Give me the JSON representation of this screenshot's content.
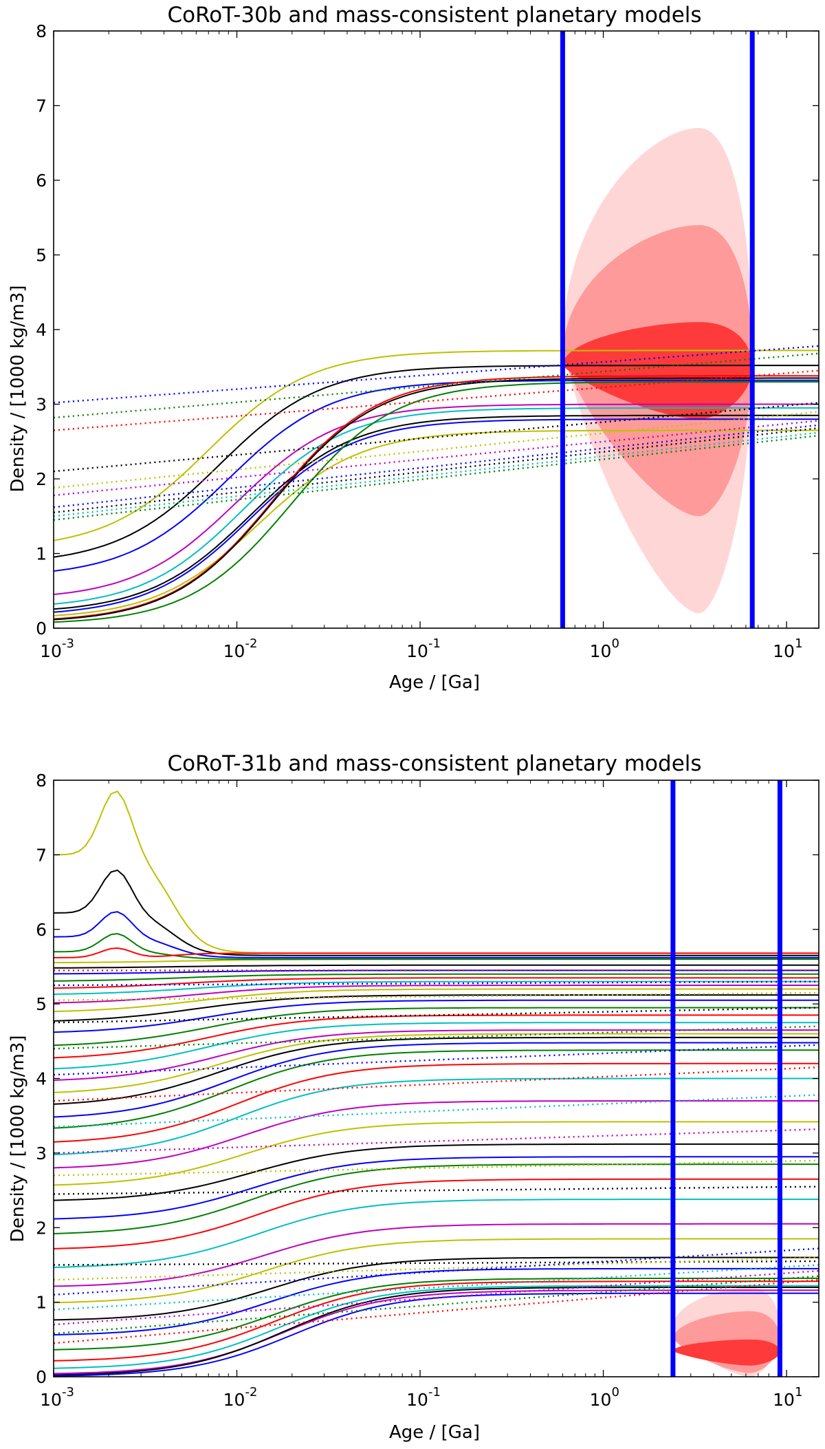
{
  "chart_data": [
    {
      "type": "line",
      "title": "CoRoT-30b and mass-consistent planetary models",
      "xlabel": "Age / [Ga]",
      "ylabel": "Density / [1000 kg/m3]",
      "xscale": "log",
      "xlim": [
        0.001,
        15
      ],
      "ylim": [
        0,
        8
      ],
      "yticks": [
        0,
        1,
        2,
        3,
        4,
        5,
        6,
        7,
        8
      ],
      "xticks": [
        {
          "value": 0.001,
          "base": "10",
          "exp": "-3"
        },
        {
          "value": 0.01,
          "base": "10",
          "exp": "-2"
        },
        {
          "value": 0.1,
          "base": "10",
          "exp": "-1"
        },
        {
          "value": 1,
          "base": "10",
          "exp": "0"
        },
        {
          "value": 10,
          "base": "10",
          "exp": "1"
        }
      ],
      "vlines": [
        {
          "x": 0.6,
          "color": "#0000ff"
        },
        {
          "x": 6.5,
          "color": "#0000ff"
        }
      ],
      "density_regions": [
        {
          "level": "outer",
          "color": "#ffd6d6",
          "xrange": [
            0.6,
            6.5
          ],
          "yrange": [
            0.2,
            6.7
          ]
        },
        {
          "level": "middle",
          "color": "#ff9a9a",
          "xrange": [
            0.6,
            6.5
          ],
          "yrange": [
            1.5,
            5.4
          ]
        },
        {
          "level": "inner",
          "color": "#ff3a3a",
          "xrange": [
            0.6,
            6.5
          ],
          "yrange": [
            2.8,
            4.1
          ]
        }
      ],
      "series": [
        {
          "style": "solid",
          "color": "#bfbf00",
          "start": 1.05,
          "end": 3.72,
          "mid": 0.007
        },
        {
          "style": "solid",
          "color": "#000000",
          "start": 0.85,
          "end": 3.52,
          "mid": 0.008
        },
        {
          "style": "solid",
          "color": "#0000ff",
          "start": 0.68,
          "end": 3.32,
          "mid": 0.009
        },
        {
          "style": "solid",
          "color": "#bf00bf",
          "start": 0.38,
          "end": 3.0,
          "mid": 0.01
        },
        {
          "style": "solid",
          "color": "#00bfbf",
          "start": 0.26,
          "end": 2.95,
          "mid": 0.011
        },
        {
          "style": "solid",
          "color": "#000000",
          "start": 0.2,
          "end": 2.85,
          "mid": 0.012
        },
        {
          "style": "solid",
          "color": "#0000ff",
          "start": 0.16,
          "end": 2.8,
          "mid": 0.012
        },
        {
          "style": "solid",
          "color": "#bfbf00",
          "start": 0.12,
          "end": 2.65,
          "mid": 0.013
        },
        {
          "style": "solid",
          "color": "#ff0000",
          "start": 0.08,
          "end": 3.38,
          "mid": 0.016
        },
        {
          "style": "solid",
          "color": "#000000",
          "start": 0.07,
          "end": 3.35,
          "mid": 0.016
        },
        {
          "style": "solid",
          "color": "#008000",
          "start": 0.05,
          "end": 3.3,
          "mid": 0.02
        },
        {
          "style": "dotted",
          "color": "#0000ff",
          "start": 3.02,
          "end": 3.78,
          "mid": 0.02
        },
        {
          "style": "dotted",
          "color": "#008000",
          "start": 2.82,
          "end": 3.68,
          "mid": 0.02
        },
        {
          "style": "dotted",
          "color": "#ff0000",
          "start": 2.65,
          "end": 3.45,
          "mid": 0.02
        },
        {
          "style": "dotted",
          "color": "#000000",
          "start": 2.1,
          "end": 3.02,
          "mid": 0.02
        },
        {
          "style": "dotted",
          "color": "#bfbf00",
          "start": 1.88,
          "end": 2.9,
          "mid": 0.02
        },
        {
          "style": "dotted",
          "color": "#bf00bf",
          "start": 1.78,
          "end": 2.78,
          "mid": 0.02
        },
        {
          "style": "dotted",
          "color": "#0000ff",
          "start": 1.62,
          "end": 2.72,
          "mid": 0.02
        },
        {
          "style": "dotted",
          "color": "#000000",
          "start": 1.55,
          "end": 2.68,
          "mid": 0.02
        },
        {
          "style": "dotted",
          "color": "#00bfbf",
          "start": 1.5,
          "end": 2.62,
          "mid": 0.02
        },
        {
          "style": "dotted",
          "color": "#008000",
          "start": 1.45,
          "end": 2.58,
          "mid": 0.02
        }
      ]
    },
    {
      "type": "line",
      "title": "CoRoT-31b and mass-consistent planetary models",
      "xlabel": "Age / [Ga]",
      "ylabel": "Density / [1000 kg/m3]",
      "xscale": "log",
      "xlim": [
        0.001,
        15
      ],
      "ylim": [
        0,
        8
      ],
      "yticks": [
        0,
        1,
        2,
        3,
        4,
        5,
        6,
        7,
        8
      ],
      "xticks": [
        {
          "value": 0.001,
          "base": "10",
          "exp": "-3"
        },
        {
          "value": 0.01,
          "base": "10",
          "exp": "-2"
        },
        {
          "value": 0.1,
          "base": "10",
          "exp": "-1"
        },
        {
          "value": 1,
          "base": "10",
          "exp": "0"
        },
        {
          "value": 10,
          "base": "10",
          "exp": "1"
        }
      ],
      "vlines": [
        {
          "x": 2.4,
          "color": "#0000ff"
        },
        {
          "x": 9.2,
          "color": "#0000ff"
        }
      ],
      "density_regions": [
        {
          "level": "outer",
          "color": "#ffd6d6",
          "xrange": [
            2.4,
            9.2
          ],
          "yrange": [
            0.0,
            1.2
          ]
        },
        {
          "level": "middle",
          "color": "#ff9a9a",
          "xrange": [
            2.4,
            9.2
          ],
          "yrange": [
            0.05,
            0.88
          ]
        },
        {
          "level": "inner",
          "color": "#ff3a3a",
          "xrange": [
            2.4,
            9.2
          ],
          "yrange": [
            0.15,
            0.5
          ]
        }
      ],
      "peaked_series": [
        {
          "color": "#bfbf00",
          "start": 7.0,
          "peak": 7.9,
          "end": 5.68
        },
        {
          "color": "#000000",
          "start": 6.22,
          "peak": 6.82,
          "end": 5.65
        },
        {
          "color": "#0000ff",
          "start": 5.9,
          "peak": 6.25,
          "end": 5.62
        },
        {
          "color": "#008000",
          "start": 5.7,
          "peak": 5.95,
          "end": 5.6
        },
        {
          "color": "#ff0000",
          "start": 5.62,
          "peak": 5.75,
          "end": 5.68
        }
      ],
      "series_description": "Approximately 40 solid model tracks rising from densities between 0.0 and 5.6 at 1e-3 Ga toward plateaus between 1.1 and 5.7 at 15 Ga, with dotted counterparts; colors cycle yellow, black, blue, green, red, cyan, magenta",
      "series": [
        {
          "style": "solid",
          "color": "#bfbf00",
          "start": 5.55,
          "end": 5.6,
          "mid": 0.005
        },
        {
          "style": "solid",
          "color": "#000000",
          "start": 5.48,
          "end": 5.52,
          "mid": 0.005
        },
        {
          "style": "solid",
          "color": "#0000ff",
          "start": 5.4,
          "end": 5.45,
          "mid": 0.005
        },
        {
          "style": "solid",
          "color": "#008000",
          "start": 5.3,
          "end": 5.4,
          "mid": 0.005
        },
        {
          "style": "solid",
          "color": "#ff0000",
          "start": 5.2,
          "end": 5.35,
          "mid": 0.005
        },
        {
          "style": "solid",
          "color": "#00bfbf",
          "start": 5.12,
          "end": 5.3,
          "mid": 0.006
        },
        {
          "style": "solid",
          "color": "#bf00bf",
          "start": 5.0,
          "end": 5.25,
          "mid": 0.006
        },
        {
          "style": "solid",
          "color": "#bfbf00",
          "start": 4.88,
          "end": 5.2,
          "mid": 0.006
        },
        {
          "style": "solid",
          "color": "#000000",
          "start": 4.75,
          "end": 5.12,
          "mid": 0.006
        },
        {
          "style": "solid",
          "color": "#0000ff",
          "start": 4.6,
          "end": 5.05,
          "mid": 0.007
        },
        {
          "style": "solid",
          "color": "#008000",
          "start": 4.42,
          "end": 4.95,
          "mid": 0.007
        },
        {
          "style": "solid",
          "color": "#ff0000",
          "start": 4.25,
          "end": 4.85,
          "mid": 0.007
        },
        {
          "style": "solid",
          "color": "#00bfbf",
          "start": 4.1,
          "end": 4.75,
          "mid": 0.007
        },
        {
          "style": "solid",
          "color": "#bf00bf",
          "start": 3.95,
          "end": 4.65,
          "mid": 0.008
        },
        {
          "style": "solid",
          "color": "#bfbf00",
          "start": 3.78,
          "end": 4.6,
          "mid": 0.008
        },
        {
          "style": "solid",
          "color": "#000000",
          "start": 3.62,
          "end": 4.55,
          "mid": 0.008
        },
        {
          "style": "solid",
          "color": "#0000ff",
          "start": 3.45,
          "end": 4.48,
          "mid": 0.009
        },
        {
          "style": "solid",
          "color": "#008000",
          "start": 3.3,
          "end": 4.38,
          "mid": 0.009
        },
        {
          "style": "solid",
          "color": "#ff0000",
          "start": 3.12,
          "end": 4.2,
          "mid": 0.01
        },
        {
          "style": "solid",
          "color": "#00bfbf",
          "start": 2.95,
          "end": 4.0,
          "mid": 0.01
        },
        {
          "style": "solid",
          "color": "#bf00bf",
          "start": 2.78,
          "end": 3.7,
          "mid": 0.011
        },
        {
          "style": "solid",
          "color": "#bfbf00",
          "start": 2.55,
          "end": 3.42,
          "mid": 0.011
        },
        {
          "style": "solid",
          "color": "#000000",
          "start": 2.35,
          "end": 3.12,
          "mid": 0.012
        },
        {
          "style": "solid",
          "color": "#0000ff",
          "start": 2.1,
          "end": 2.95,
          "mid": 0.012
        },
        {
          "style": "solid",
          "color": "#008000",
          "start": 1.9,
          "end": 2.85,
          "mid": 0.012
        },
        {
          "style": "solid",
          "color": "#ff0000",
          "start": 1.7,
          "end": 2.65,
          "mid": 0.013
        },
        {
          "style": "solid",
          "color": "#00bfbf",
          "start": 1.45,
          "end": 2.38,
          "mid": 0.013
        },
        {
          "style": "solid",
          "color": "#bf00bf",
          "start": 1.2,
          "end": 2.05,
          "mid": 0.014
        },
        {
          "style": "solid",
          "color": "#bfbf00",
          "start": 0.98,
          "end": 1.85,
          "mid": 0.014
        },
        {
          "style": "solid",
          "color": "#000000",
          "start": 0.75,
          "end": 1.6,
          "mid": 0.015
        },
        {
          "style": "solid",
          "color": "#0000ff",
          "start": 0.55,
          "end": 1.45,
          "mid": 0.015
        },
        {
          "style": "solid",
          "color": "#008000",
          "start": 0.35,
          "end": 1.32,
          "mid": 0.016
        },
        {
          "style": "solid",
          "color": "#ff0000",
          "start": 0.2,
          "end": 1.28,
          "mid": 0.016
        },
        {
          "style": "solid",
          "color": "#00bfbf",
          "start": 0.1,
          "end": 1.22,
          "mid": 0.017
        },
        {
          "style": "solid",
          "color": "#bf00bf",
          "start": 0.03,
          "end": 1.16,
          "mid": 0.018
        },
        {
          "style": "solid",
          "color": "#000000",
          "start": 0.01,
          "end": 1.2,
          "mid": 0.018
        },
        {
          "style": "solid",
          "color": "#0000ff",
          "start": 0.0,
          "end": 1.12,
          "mid": 0.02
        },
        {
          "style": "dotted",
          "color": "#000000",
          "start": 1.5,
          "end": 1.55,
          "mid": 0.02
        },
        {
          "style": "dotted",
          "color": "#bfbf00",
          "start": 1.3,
          "end": 1.6,
          "mid": 0.02
        },
        {
          "style": "dotted",
          "color": "#0000ff",
          "start": 1.1,
          "end": 1.72,
          "mid": 0.02
        },
        {
          "style": "dotted",
          "color": "#00bfbf",
          "start": 0.9,
          "end": 1.5,
          "mid": 0.02
        },
        {
          "style": "dotted",
          "color": "#bf00bf",
          "start": 0.7,
          "end": 1.42,
          "mid": 0.02
        },
        {
          "style": "dotted",
          "color": "#008000",
          "start": 0.58,
          "end": 1.35,
          "mid": 0.02
        },
        {
          "style": "dotted",
          "color": "#ff0000",
          "start": 0.45,
          "end": 1.3,
          "mid": 0.02
        },
        {
          "style": "dotted",
          "color": "#000000",
          "start": 2.45,
          "end": 2.55,
          "mid": 0.02
        },
        {
          "style": "dotted",
          "color": "#bfbf00",
          "start": 2.7,
          "end": 2.9,
          "mid": 0.02
        },
        {
          "style": "dotted",
          "color": "#bf00bf",
          "start": 3.0,
          "end": 3.32,
          "mid": 0.02
        },
        {
          "style": "dotted",
          "color": "#00bfbf",
          "start": 3.35,
          "end": 3.78,
          "mid": 0.02
        },
        {
          "style": "dotted",
          "color": "#ff0000",
          "start": 3.7,
          "end": 4.15,
          "mid": 0.02
        },
        {
          "style": "dotted",
          "color": "#0000ff",
          "start": 4.05,
          "end": 4.45,
          "mid": 0.02
        },
        {
          "style": "dotted",
          "color": "#008000",
          "start": 4.4,
          "end": 4.7,
          "mid": 0.02
        },
        {
          "style": "dotted",
          "color": "#000000",
          "start": 4.75,
          "end": 4.95,
          "mid": 0.02
        },
        {
          "style": "dotted",
          "color": "#bfbf00",
          "start": 5.05,
          "end": 5.15,
          "mid": 0.02
        },
        {
          "style": "dotted",
          "color": "#0000ff",
          "start": 5.25,
          "end": 5.3,
          "mid": 0.02
        },
        {
          "style": "dotted",
          "color": "#ff0000",
          "start": 5.45,
          "end": 5.45,
          "mid": 0.02
        }
      ]
    }
  ]
}
